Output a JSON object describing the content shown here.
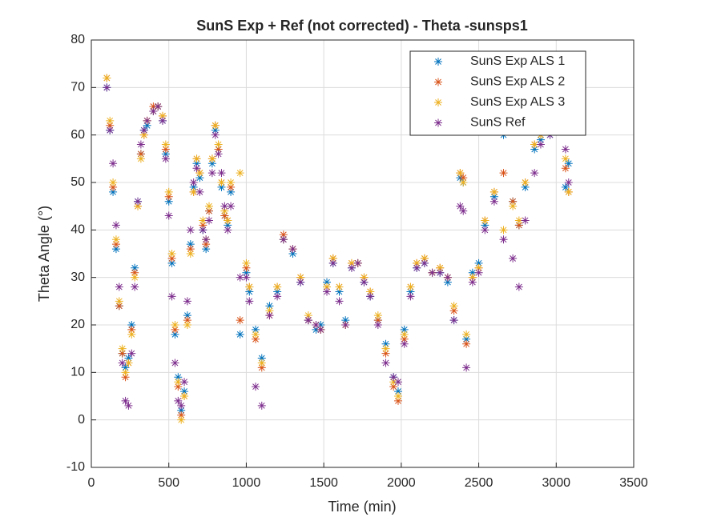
{
  "chart_data": {
    "type": "scatter",
    "title": "SunS Exp + Ref (not corrected) - Theta -sunsps1",
    "xlabel": "Time (min)",
    "ylabel": "Theta Angle (°)",
    "xlim": [
      0,
      3500
    ],
    "xticks": [
      0,
      500,
      1000,
      1500,
      2000,
      2500,
      3000,
      3500
    ],
    "ylim": [
      -10,
      80
    ],
    "yticks": [
      -10,
      0,
      10,
      20,
      30,
      40,
      50,
      60,
      70,
      80
    ],
    "grid": true,
    "legend": "northeast",
    "x": [
      100,
      120,
      140,
      160,
      180,
      200,
      220,
      240,
      260,
      280,
      300,
      320,
      340,
      360,
      400,
      430,
      460,
      480,
      500,
      520,
      540,
      560,
      580,
      600,
      620,
      640,
      660,
      680,
      700,
      720,
      740,
      760,
      780,
      800,
      820,
      840,
      860,
      880,
      900,
      960,
      1000,
      1020,
      1060,
      1100,
      1150,
      1200,
      1240,
      1300,
      1350,
      1400,
      1450,
      1480,
      1520,
      1560,
      1600,
      1640,
      1680,
      1720,
      1760,
      1800,
      1850,
      1900,
      1950,
      1980,
      2020,
      2060,
      2100,
      2150,
      2200,
      2250,
      2300,
      2340,
      2380,
      2400,
      2420,
      2460,
      2500,
      2540,
      2600,
      2660,
      2720,
      2760,
      2800,
      2860,
      2900,
      2960,
      3060,
      3080
    ],
    "series": [
      {
        "name": "SunS Exp ALS 1",
        "color": "#0072BD",
        "values": [
          70,
          61,
          48,
          36,
          24,
          14,
          11,
          13,
          20,
          32,
          46,
          56,
          61,
          62,
          65,
          66,
          63,
          56,
          46,
          33,
          18,
          9,
          2,
          6,
          22,
          37,
          49,
          54,
          51,
          40,
          36,
          44,
          54,
          61,
          57,
          49,
          43,
          41,
          48,
          18,
          31,
          27,
          19,
          13,
          24,
          27,
          38,
          35,
          29,
          21,
          19,
          20,
          29,
          33,
          27,
          21,
          32,
          33,
          29,
          26,
          21,
          16,
          9,
          6,
          19,
          27,
          32,
          33,
          31,
          31,
          29,
          21,
          51,
          50,
          17,
          31,
          33,
          41,
          47,
          60,
          46,
          41,
          49,
          57,
          59,
          60,
          49,
          54
        ]
      },
      {
        "name": "SunS Exp ALS 2",
        "color": "#D95319",
        "values": [
          72,
          62,
          49,
          37,
          24,
          14,
          9,
          12,
          19,
          31,
          45,
          56,
          60,
          63,
          66,
          66,
          64,
          57,
          47,
          34,
          19,
          7,
          1,
          5,
          21,
          36,
          48,
          55,
          52,
          41,
          37,
          44,
          55,
          62,
          57,
          50,
          43,
          42,
          49,
          21,
          32,
          28,
          17,
          11,
          22,
          28,
          39,
          36,
          30,
          21,
          20,
          19,
          28,
          34,
          28,
          20,
          33,
          33,
          30,
          27,
          21,
          14,
          7,
          4,
          17,
          28,
          33,
          34,
          31,
          32,
          30,
          23,
          52,
          51,
          16,
          30,
          32,
          42,
          48,
          52,
          46,
          41,
          50,
          58,
          60,
          61,
          53,
          48
        ]
      },
      {
        "name": "SunS Exp ALS 3",
        "color": "#EDB120",
        "values": [
          72,
          63,
          50,
          38,
          25,
          15,
          10,
          12,
          18,
          30,
          45,
          55,
          60,
          63,
          65,
          66,
          64,
          58,
          48,
          35,
          20,
          8,
          0,
          5,
          20,
          35,
          48,
          55,
          52,
          42,
          38,
          45,
          55,
          62,
          58,
          50,
          44,
          42,
          50,
          52,
          33,
          28,
          18,
          12,
          23,
          28,
          38,
          36,
          30,
          22,
          20,
          19,
          28,
          34,
          28,
          20,
          33,
          33,
          30,
          27,
          22,
          15,
          8,
          5,
          18,
          28,
          33,
          34,
          31,
          32,
          30,
          24,
          52,
          50,
          18,
          30,
          32,
          42,
          48,
          40,
          45,
          42,
          50,
          58,
          60,
          61,
          55,
          48
        ]
      },
      {
        "name": "SunS Ref",
        "color": "#7E2F8E",
        "values": [
          70,
          61,
          54,
          41,
          28,
          12,
          4,
          3,
          14,
          28,
          46,
          58,
          61,
          63,
          65,
          66,
          63,
          55,
          43,
          26,
          12,
          4,
          3,
          8,
          25,
          40,
          50,
          53,
          48,
          40,
          38,
          42,
          52,
          60,
          56,
          52,
          45,
          40,
          45,
          30,
          30,
          25,
          7,
          3,
          22,
          26,
          38,
          36,
          29,
          21,
          20,
          19,
          27,
          33,
          25,
          20,
          32,
          33,
          29,
          26,
          20,
          12,
          9,
          8,
          16,
          26,
          32,
          33,
          31,
          31,
          30,
          21,
          45,
          44,
          11,
          29,
          31,
          40,
          46,
          38,
          34,
          28,
          42,
          52,
          58,
          60,
          57,
          50
        ]
      }
    ]
  }
}
